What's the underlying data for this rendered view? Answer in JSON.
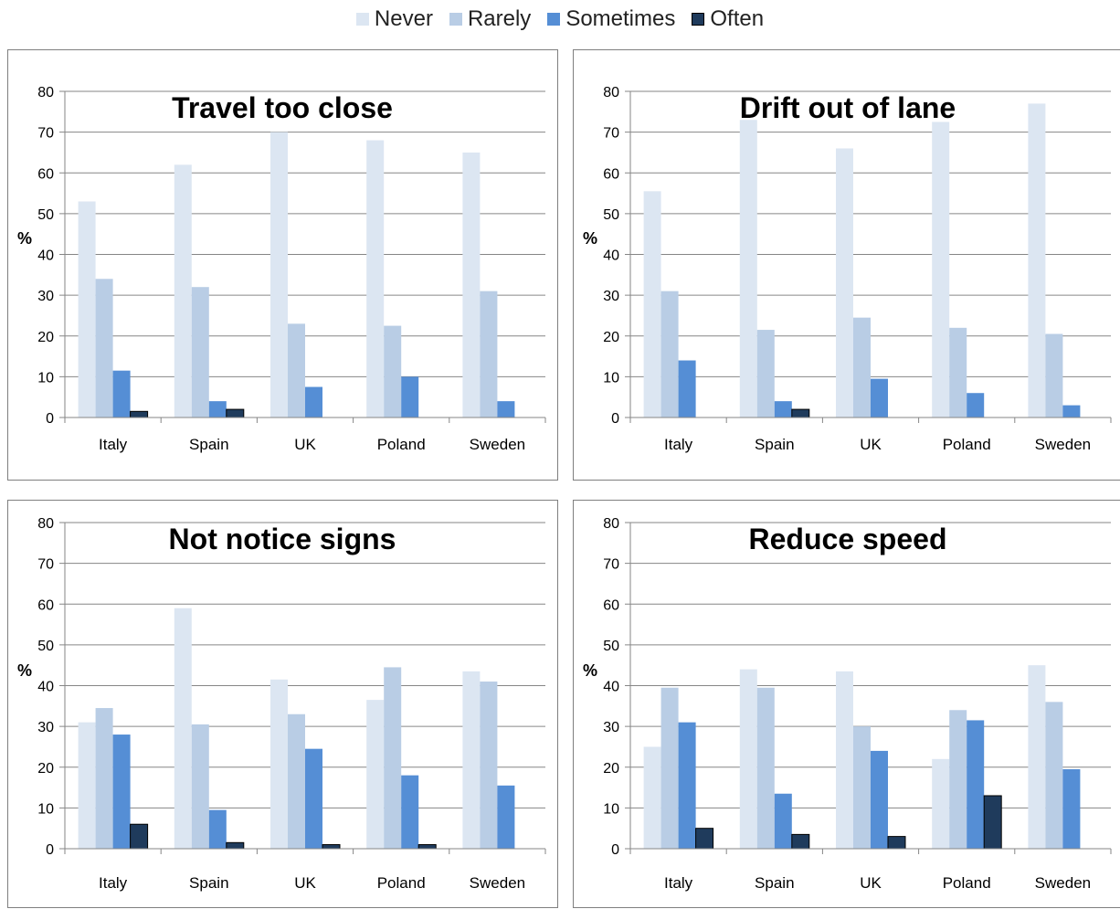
{
  "legend": [
    {
      "name": "Never",
      "color": "#dce6f2"
    },
    {
      "name": "Rarely",
      "color": "#b9cde5"
    },
    {
      "name": "Sometimes",
      "color": "#558ed5"
    },
    {
      "name": "Often",
      "color": "#1f3b5c"
    }
  ],
  "chart_data": [
    {
      "type": "bar",
      "title": "Travel too close",
      "ylabel": "%",
      "ylim": [
        0,
        80
      ],
      "yticks": [
        0,
        10,
        20,
        30,
        40,
        50,
        60,
        70,
        80
      ],
      "grid": true,
      "categories": [
        "Italy",
        "Spain",
        "UK",
        "Poland",
        "Sweden"
      ],
      "series": [
        {
          "name": "Never",
          "values": [
            53,
            62,
            70,
            68,
            65
          ]
        },
        {
          "name": "Rarely",
          "values": [
            34,
            32,
            23,
            22.5,
            31
          ]
        },
        {
          "name": "Sometimes",
          "values": [
            11.5,
            4,
            7.5,
            10,
            4
          ]
        },
        {
          "name": "Often",
          "values": [
            1.5,
            2,
            0,
            0,
            0
          ]
        }
      ]
    },
    {
      "type": "bar",
      "title": "Drift out of lane",
      "ylabel": "%",
      "ylim": [
        0,
        80
      ],
      "yticks": [
        0,
        10,
        20,
        30,
        40,
        50,
        60,
        70,
        80
      ],
      "grid": true,
      "categories": [
        "Italy",
        "Spain",
        "UK",
        "Poland",
        "Sweden"
      ],
      "series": [
        {
          "name": "Never",
          "values": [
            55.5,
            73,
            66,
            72.5,
            77
          ]
        },
        {
          "name": "Rarely",
          "values": [
            31,
            21.5,
            24.5,
            22,
            20.5
          ]
        },
        {
          "name": "Sometimes",
          "values": [
            14,
            4,
            9.5,
            6,
            3
          ]
        },
        {
          "name": "Often",
          "values": [
            0,
            2,
            0,
            0,
            0
          ]
        }
      ]
    },
    {
      "type": "bar",
      "title": "Not notice signs",
      "ylabel": "%",
      "ylim": [
        0,
        80
      ],
      "yticks": [
        0,
        10,
        20,
        30,
        40,
        50,
        60,
        70,
        80
      ],
      "grid": true,
      "categories": [
        "Italy",
        "Spain",
        "UK",
        "Poland",
        "Sweden"
      ],
      "series": [
        {
          "name": "Never",
          "values": [
            31,
            59,
            41.5,
            36.5,
            43.5
          ]
        },
        {
          "name": "Rarely",
          "values": [
            34.5,
            30.5,
            33,
            44.5,
            41
          ]
        },
        {
          "name": "Sometimes",
          "values": [
            28,
            9.5,
            24.5,
            18,
            15.5
          ]
        },
        {
          "name": "Often",
          "values": [
            6,
            1.5,
            1,
            1,
            0
          ]
        }
      ]
    },
    {
      "type": "bar",
      "title": "Reduce speed",
      "ylabel": "%",
      "ylim": [
        0,
        80
      ],
      "yticks": [
        0,
        10,
        20,
        30,
        40,
        50,
        60,
        70,
        80
      ],
      "grid": true,
      "categories": [
        "Italy",
        "Spain",
        "UK",
        "Poland",
        "Sweden"
      ],
      "series": [
        {
          "name": "Never",
          "values": [
            25,
            44,
            43.5,
            22,
            45
          ]
        },
        {
          "name": "Rarely",
          "values": [
            39.5,
            39.5,
            30,
            34,
            36
          ]
        },
        {
          "name": "Sometimes",
          "values": [
            31,
            13.5,
            24,
            31.5,
            19.5
          ]
        },
        {
          "name": "Often",
          "values": [
            5,
            3.5,
            3,
            13,
            0
          ]
        }
      ]
    }
  ]
}
